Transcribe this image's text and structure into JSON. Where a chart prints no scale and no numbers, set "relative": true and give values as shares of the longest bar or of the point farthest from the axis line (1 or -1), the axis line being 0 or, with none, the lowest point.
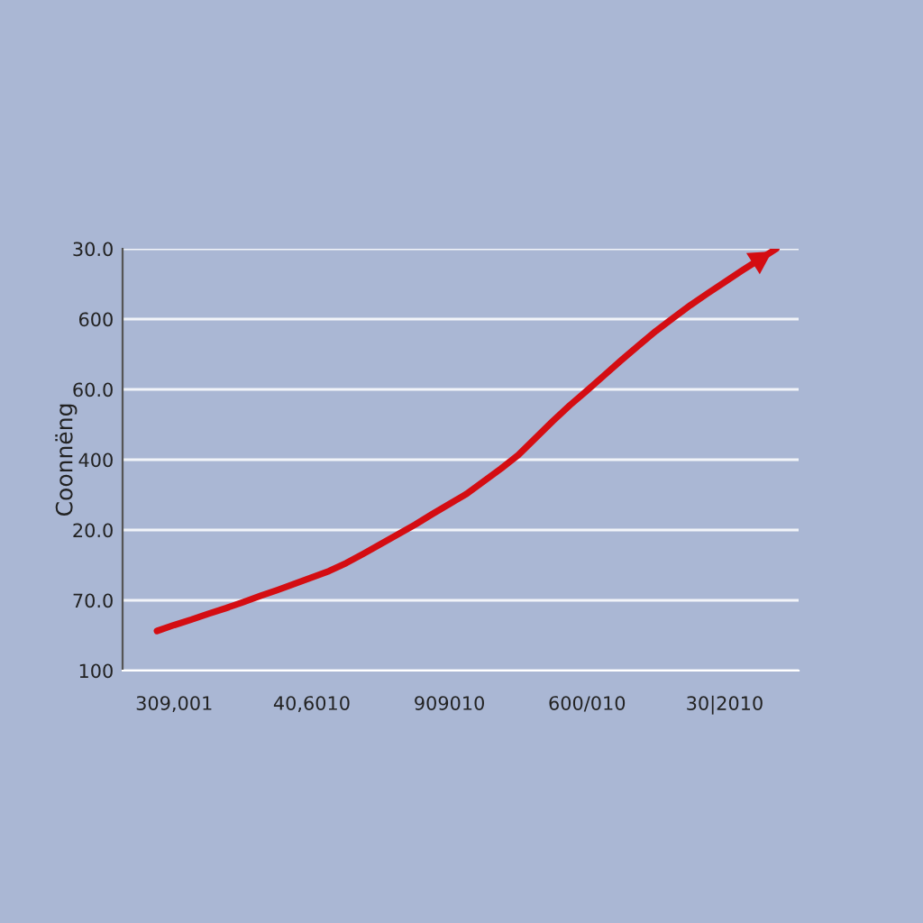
{
  "chart_data": {
    "type": "line",
    "ylabel": "Coonnëng",
    "relative": true,
    "categories": [
      null,
      "309,001",
      null,
      null,
      null,
      null,
      null,
      null,
      null,
      "40,6010",
      null,
      null,
      null,
      null,
      null,
      null,
      null,
      "909010",
      null,
      null,
      null,
      null,
      null,
      null,
      null,
      "600/010",
      null,
      null,
      null,
      null,
      null,
      null,
      null,
      "30|2010",
      null,
      null,
      null
    ],
    "series": [
      {
        "color": "#d40d12",
        "values": [
          0.094,
          0.108,
          0.121,
          0.135,
          0.148,
          0.162,
          0.177,
          0.191,
          0.206,
          0.221,
          0.236,
          0.255,
          0.277,
          0.3,
          0.323,
          0.346,
          0.371,
          0.395,
          0.419,
          0.449,
          0.479,
          0.511,
          0.551,
          0.591,
          0.629,
          0.664,
          0.7,
          0.736,
          0.771,
          0.805,
          0.836,
          0.866,
          0.894,
          0.921,
          0.948,
          0.974,
          1.0
        ]
      }
    ],
    "annotations": [
      "100",
      "70.0",
      "20.0",
      "400",
      "60.0",
      "600",
      "30.0"
    ],
    "grid": "y",
    "marker": "none",
    "line_style": "solid"
  }
}
